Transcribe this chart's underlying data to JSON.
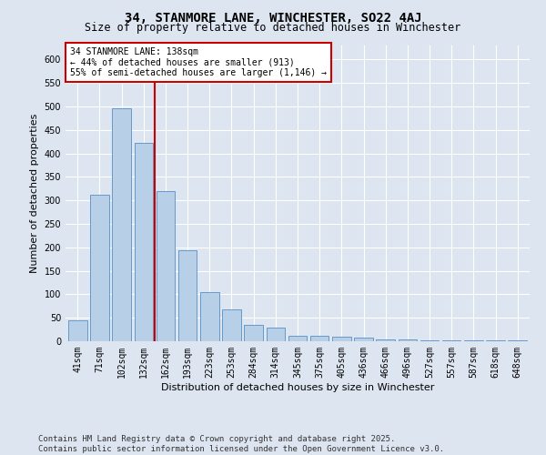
{
  "title": "34, STANMORE LANE, WINCHESTER, SO22 4AJ",
  "subtitle": "Size of property relative to detached houses in Winchester",
  "xlabel": "Distribution of detached houses by size in Winchester",
  "ylabel": "Number of detached properties",
  "categories": [
    "41sqm",
    "71sqm",
    "102sqm",
    "132sqm",
    "162sqm",
    "193sqm",
    "223sqm",
    "253sqm",
    "284sqm",
    "314sqm",
    "345sqm",
    "375sqm",
    "405sqm",
    "436sqm",
    "466sqm",
    "496sqm",
    "527sqm",
    "557sqm",
    "587sqm",
    "618sqm",
    "648sqm"
  ],
  "values": [
    45,
    313,
    497,
    422,
    320,
    194,
    105,
    68,
    35,
    30,
    11,
    11,
    10,
    7,
    3,
    3,
    2,
    2,
    1,
    1,
    1
  ],
  "bar_color": "#b8cfe8",
  "bar_edge_color": "#6699cc",
  "background_color": "#dde5f0",
  "vline_color": "#cc0000",
  "vline_pos": 3.5,
  "annotation_text": "34 STANMORE LANE: 138sqm\n← 44% of detached houses are smaller (913)\n55% of semi-detached houses are larger (1,146) →",
  "annotation_box_color": "#ffffff",
  "annotation_box_edge": "#cc0000",
  "ylim": [
    0,
    630
  ],
  "yticks": [
    0,
    50,
    100,
    150,
    200,
    250,
    300,
    350,
    400,
    450,
    500,
    550,
    600
  ],
  "footer": "Contains HM Land Registry data © Crown copyright and database right 2025.\nContains public sector information licensed under the Open Government Licence v3.0.",
  "title_fontsize": 10,
  "subtitle_fontsize": 8.5,
  "axis_label_fontsize": 8,
  "tick_fontsize": 7,
  "annotation_fontsize": 7,
  "footer_fontsize": 6.5
}
